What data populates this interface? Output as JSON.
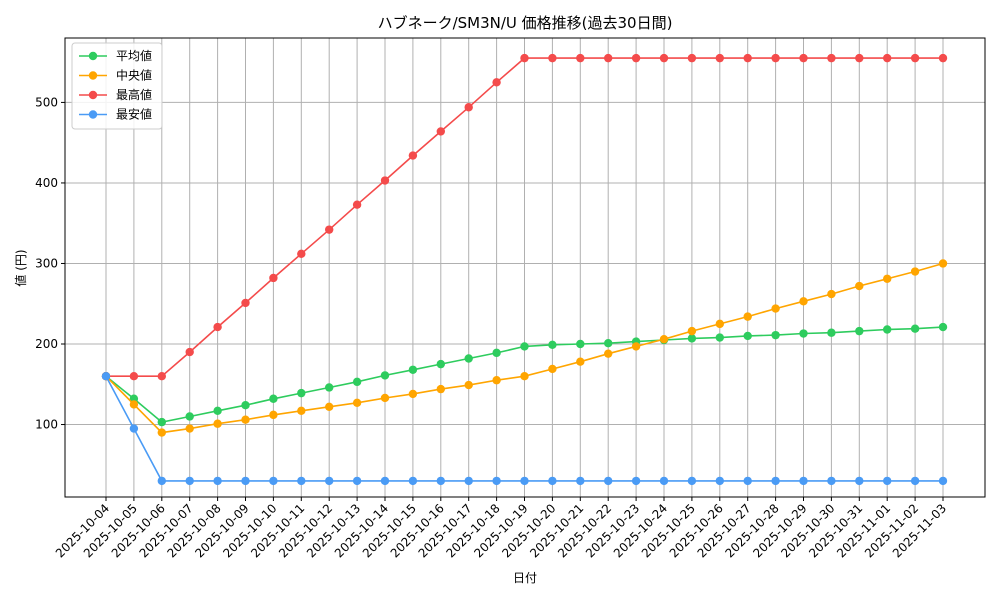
{
  "chart_data": {
    "type": "line",
    "title": "ハブネーク/SM3N/U 価格推移(過去30日間)",
    "xlabel": "日付",
    "ylabel": "値 (円)",
    "ylim": [
      10,
      580
    ],
    "yticks": [
      100,
      200,
      300,
      400,
      500
    ],
    "grid": true,
    "legend_position": "top-left",
    "categories": [
      "2025-10-04",
      "2025-10-05",
      "2025-10-06",
      "2025-10-07",
      "2025-10-08",
      "2025-10-09",
      "2025-10-10",
      "2025-10-11",
      "2025-10-12",
      "2025-10-13",
      "2025-10-14",
      "2025-10-15",
      "2025-10-16",
      "2025-10-17",
      "2025-10-18",
      "2025-10-19",
      "2025-10-20",
      "2025-10-21",
      "2025-10-22",
      "2025-10-23",
      "2025-10-24",
      "2025-10-25",
      "2025-10-26",
      "2025-10-27",
      "2025-10-28",
      "2025-10-29",
      "2025-10-30",
      "2025-10-31",
      "2025-11-01",
      "2025-11-02",
      "2025-11-03"
    ],
    "series": [
      {
        "name": "平均値",
        "color": "#2ecc5e",
        "values": [
          160,
          132,
          103,
          110,
          117,
          124,
          132,
          139,
          146,
          153,
          161,
          168,
          175,
          182,
          189,
          197,
          199,
          200,
          201,
          203,
          205,
          207,
          208,
          210,
          211,
          213,
          214,
          216,
          218,
          219,
          221
        ]
      },
      {
        "name": "中央値",
        "color": "#ffa500",
        "values": [
          160,
          125,
          90,
          95,
          101,
          106,
          112,
          117,
          122,
          127,
          133,
          138,
          144,
          149,
          155,
          160,
          169,
          178,
          188,
          197,
          206,
          216,
          225,
          234,
          244,
          253,
          262,
          272,
          281,
          290,
          300
        ]
      },
      {
        "name": "最高値",
        "color": "#f44b4b",
        "values": [
          160,
          160,
          160,
          190,
          221,
          251,
          282,
          312,
          342,
          373,
          403,
          434,
          464,
          494,
          525,
          555,
          555,
          555,
          555,
          555,
          555,
          555,
          555,
          555,
          555,
          555,
          555,
          555,
          555,
          555,
          555
        ]
      },
      {
        "name": "最安値",
        "color": "#4a9bf5",
        "values": [
          160,
          95,
          30,
          30,
          30,
          30,
          30,
          30,
          30,
          30,
          30,
          30,
          30,
          30,
          30,
          30,
          30,
          30,
          30,
          30,
          30,
          30,
          30,
          30,
          30,
          30,
          30,
          30,
          30,
          30,
          30
        ]
      }
    ]
  }
}
